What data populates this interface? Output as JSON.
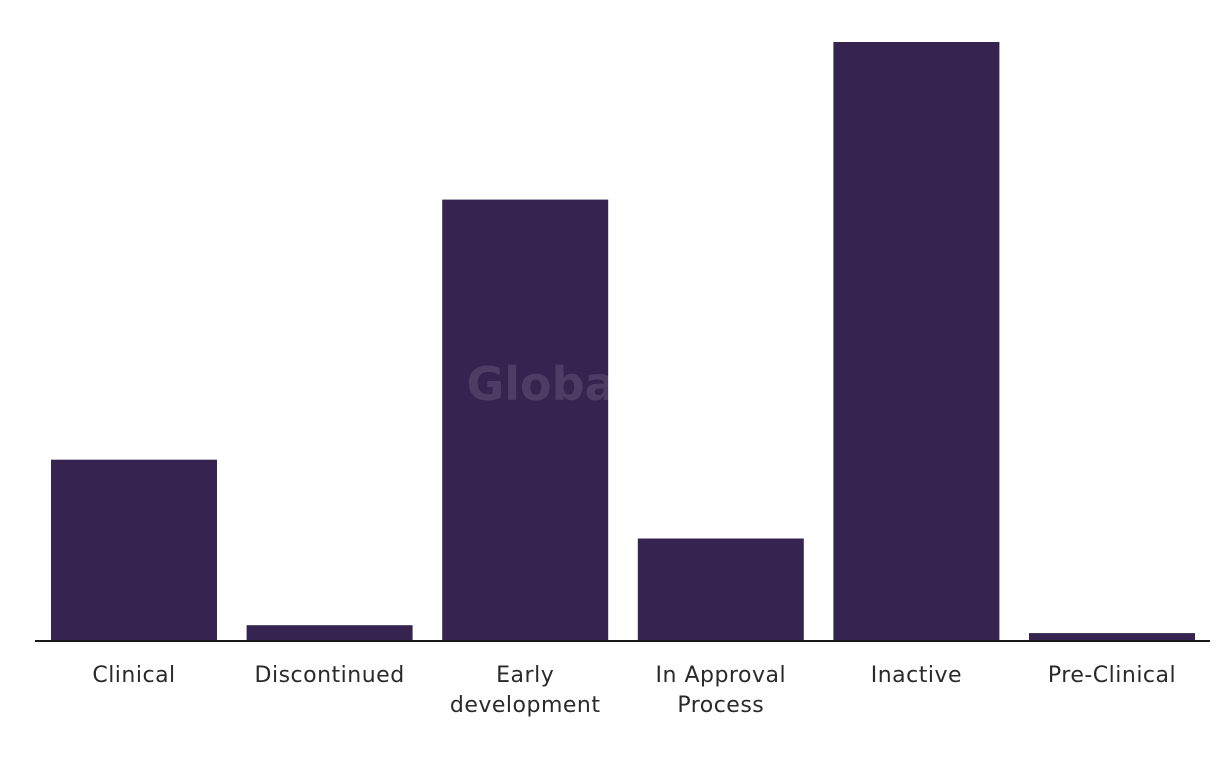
{
  "watermark": "GlobalData",
  "chart_data": {
    "type": "bar",
    "categories": [
      [
        "Clinical"
      ],
      [
        "Discontinued"
      ],
      [
        "Early",
        "development"
      ],
      [
        "In Approval",
        "Process"
      ],
      [
        "Inactive"
      ],
      [
        "Pre-Clinical"
      ]
    ],
    "values": [
      23,
      2,
      56,
      13,
      76,
      1
    ],
    "ylim": [
      0,
      76
    ],
    "grid": false,
    "colors": {
      "bar": "#352350",
      "axis": "#1a1a1a",
      "watermark": "#ffffff"
    }
  }
}
